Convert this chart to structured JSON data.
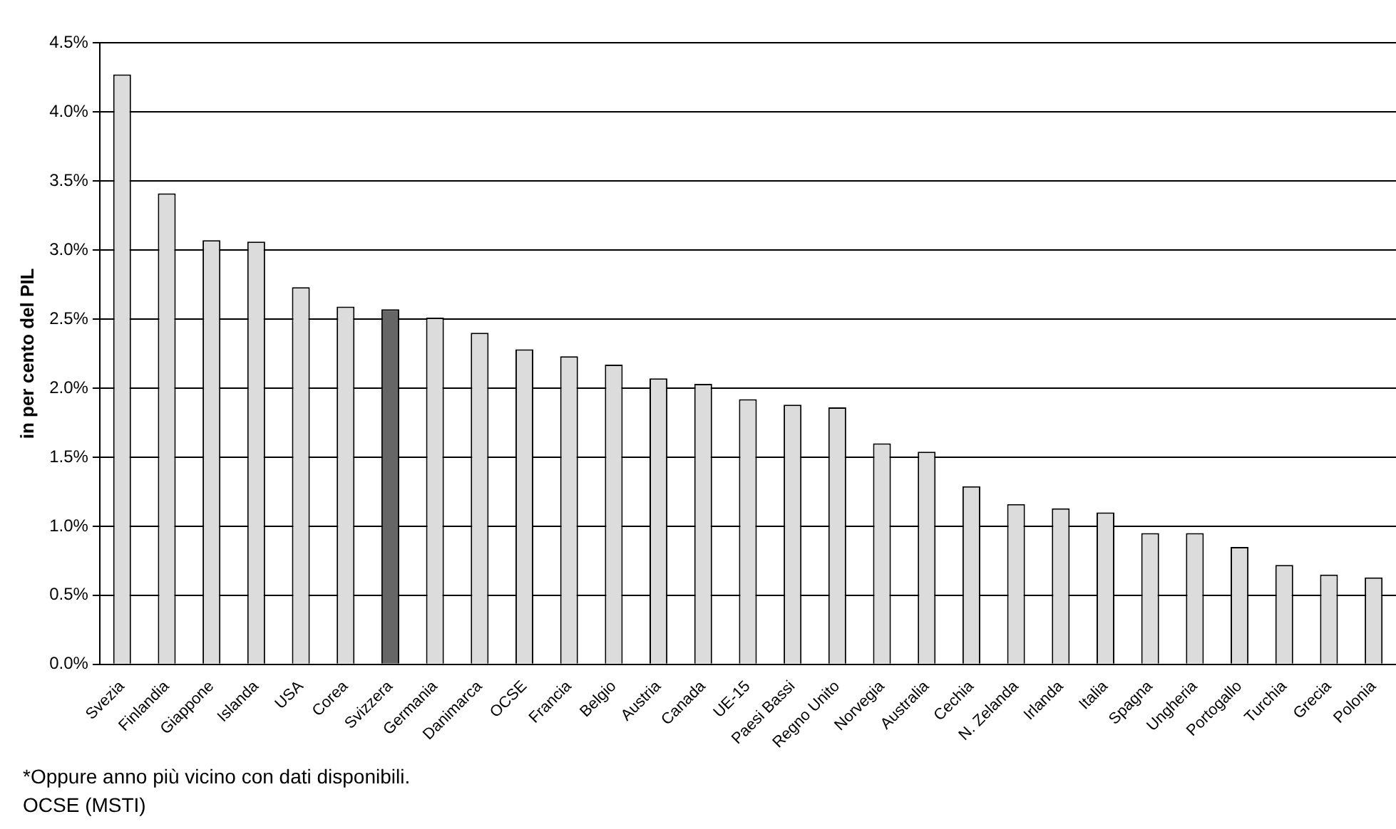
{
  "chart_data": {
    "type": "bar",
    "ylabel": "in per cento del PIL",
    "categories": [
      "Svezia",
      "Finlandia",
      "Giappone",
      "Islanda",
      "USA",
      "Corea",
      "Svizzera",
      "Germania",
      "Danimarca",
      "OCSE",
      "Francia",
      "Belgio",
      "Austria",
      "Canada",
      "UE-15",
      "Paesi Bassi",
      "Regno Unito",
      "Norvegia",
      "Australia",
      "Cechia",
      "N. Zelanda",
      "Irlanda",
      "Italia",
      "Spagna",
      "Ungheria",
      "Portogallo",
      "Turchia",
      "Grecia",
      "Polonia"
    ],
    "values": [
      4.27,
      3.41,
      3.07,
      3.06,
      2.73,
      2.59,
      2.57,
      2.51,
      2.4,
      2.28,
      2.23,
      2.17,
      2.07,
      2.03,
      1.92,
      1.88,
      1.86,
      1.6,
      1.54,
      1.29,
      1.16,
      1.13,
      1.1,
      0.95,
      0.95,
      0.85,
      0.72,
      0.65,
      0.63
    ],
    "colors": [
      "#dcdcdc",
      "#dcdcdc",
      "#dcdcdc",
      "#dcdcdc",
      "#dcdcdc",
      "#dcdcdc",
      "#666666",
      "#dcdcdc",
      "#dcdcdc",
      "#dcdcdc",
      "#dcdcdc",
      "#dcdcdc",
      "#dcdcdc",
      "#dcdcdc",
      "#dcdcdc",
      "#dcdcdc",
      "#dcdcdc",
      "#dcdcdc",
      "#dcdcdc",
      "#dcdcdc",
      "#dcdcdc",
      "#dcdcdc",
      "#dcdcdc",
      "#dcdcdc",
      "#dcdcdc",
      "#dcdcdc",
      "#dcdcdc",
      "#dcdcdc",
      "#dcdcdc"
    ],
    "ylim": [
      0,
      4.5
    ],
    "yticks": [
      {
        "value": 0,
        "label": "0.0%"
      },
      {
        "value": 0.5,
        "label": "0.5%"
      },
      {
        "value": 1,
        "label": "1.0%"
      },
      {
        "value": 1.5,
        "label": "1.5%"
      },
      {
        "value": 2,
        "label": "2.0%"
      },
      {
        "value": 2.5,
        "label": "2.5%"
      },
      {
        "value": 3,
        "label": "3.0%"
      },
      {
        "value": 3.5,
        "label": "3.5%"
      },
      {
        "value": 4,
        "label": "4.0%"
      },
      {
        "value": 4.5,
        "label": "4.5%"
      }
    ],
    "grid": "y",
    "legend": false,
    "annotations": [
      "*Oppure anno più vicino con dati disponibili.",
      "OCSE (MSTI)"
    ]
  }
}
